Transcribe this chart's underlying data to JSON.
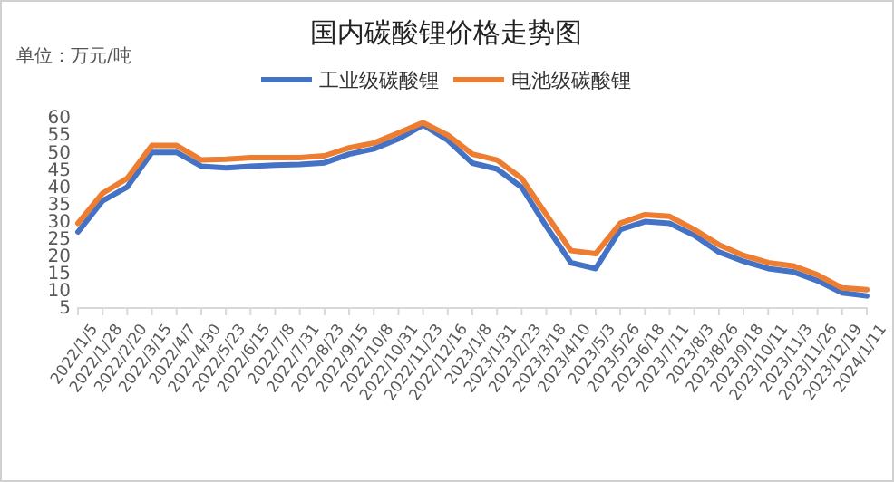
{
  "chart_data": {
    "type": "line",
    "title": "国内碳酸锂价格走势图",
    "annotations": [
      "单位：万元/吨"
    ],
    "categories": [
      "2022/1/5",
      "2022/1/28",
      "2022/2/20",
      "2022/3/15",
      "2022/4/7",
      "2022/4/30",
      "2022/5/23",
      "2022/6/15",
      "2022/7/8",
      "2022/7/31",
      "2022/8/23",
      "2022/9/15",
      "2022/10/8",
      "2022/10/31",
      "2022/11/23",
      "2022/12/16",
      "2023/1/8",
      "2023/1/31",
      "2023/2/23",
      "2023/3/18",
      "2023/4/10",
      "2023/5/3",
      "2023/5/26",
      "2023/6/18",
      "2023/7/11",
      "2023/8/3",
      "2023/8/26",
      "2023/9/18",
      "2023/10/11",
      "2023/11/3",
      "2023/11/26",
      "2023/12/19",
      "2024/1/11"
    ],
    "series": [
      {
        "name": "工业级碳酸锂",
        "color": "#4472c4",
        "values": [
          27,
          36,
          40,
          50,
          50,
          46,
          45.5,
          46,
          46.3,
          46.5,
          47,
          49.5,
          51,
          53.9,
          57.9,
          53.5,
          46.9,
          45.2,
          39.9,
          28.6,
          18.1,
          16.4,
          27.7,
          30,
          29.5,
          26,
          21.2,
          18.5,
          16.4,
          15.5,
          12.9,
          9.4,
          8.5
        ]
      },
      {
        "name": "电池级碳酸锂",
        "color": "#ed7d31",
        "values": [
          29.5,
          38.2,
          42.5,
          52,
          52,
          47.8,
          48,
          48.5,
          48.5,
          48.5,
          49,
          51.3,
          52.7,
          55.6,
          58.6,
          55,
          49.5,
          47.8,
          42.5,
          32,
          21.6,
          20.7,
          29.5,
          32,
          31.5,
          27.7,
          23.3,
          20.2,
          18.1,
          17.2,
          14.6,
          10.8,
          10.3
        ]
      }
    ],
    "ylim": [
      5,
      60
    ],
    "yticks": [
      5,
      10,
      15,
      20,
      25,
      30,
      35,
      40,
      45,
      50,
      55,
      60
    ],
    "grid": false,
    "legend": "top",
    "marker": "none",
    "line_style": "solid"
  }
}
